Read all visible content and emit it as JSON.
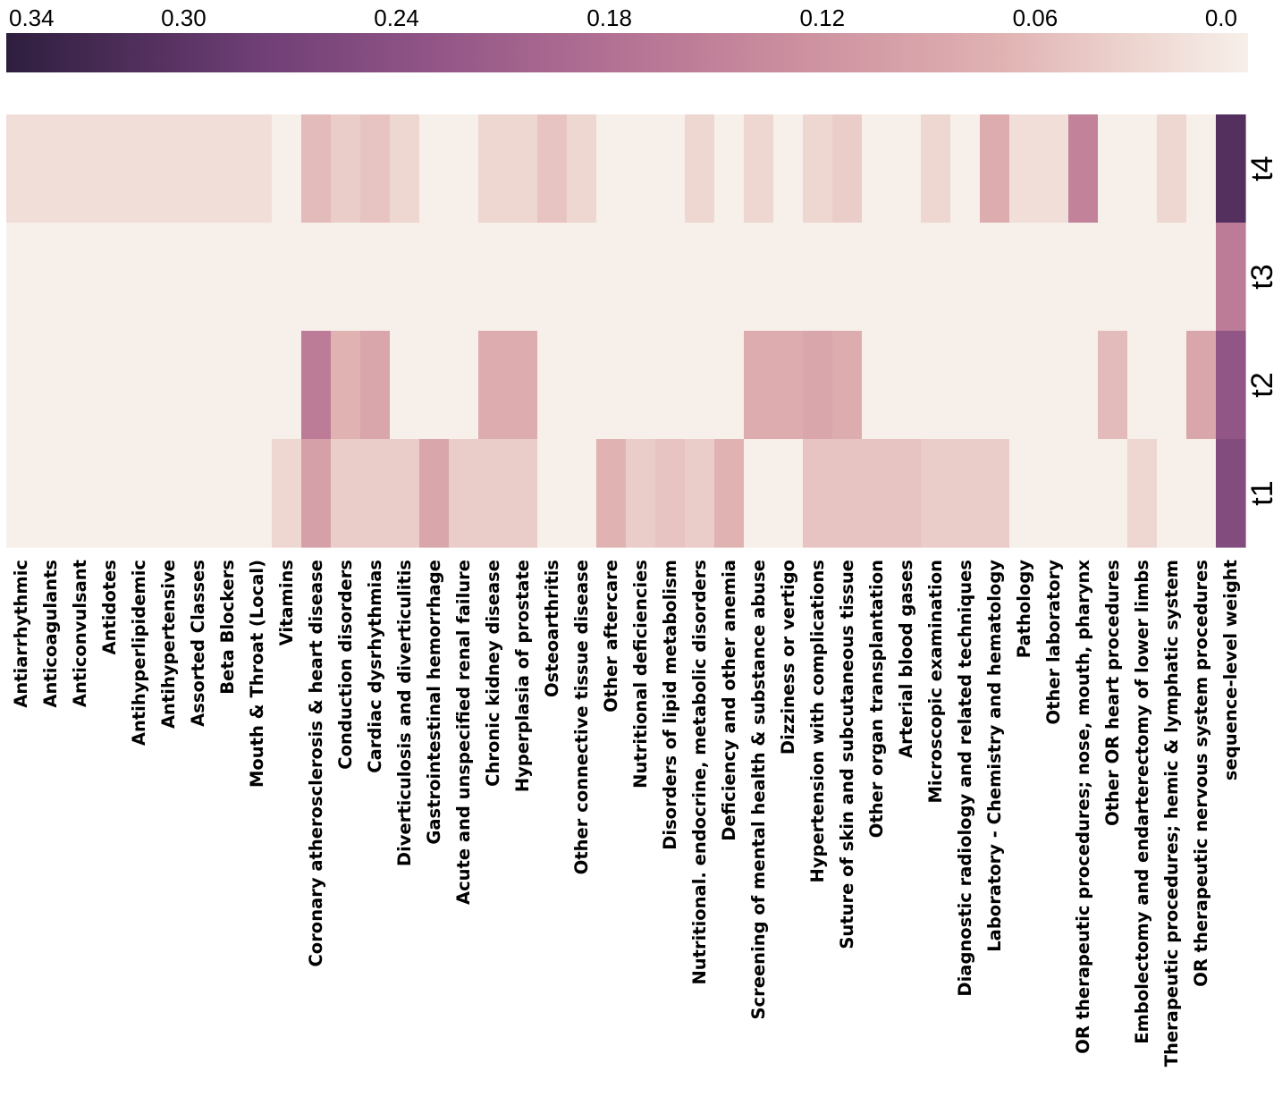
{
  "chart_data": {
    "type": "heatmap",
    "title": "",
    "xlabel": "",
    "ylabel": "",
    "colorbar": {
      "orientation": "horizontal",
      "placement": "top",
      "vmin": 0.0,
      "vmax": 0.35,
      "reversed": true,
      "ticks": [
        0.34,
        0.3,
        0.24,
        0.18,
        0.12,
        0.06,
        0.0
      ],
      "tick_labels": [
        "0.34",
        "0.30",
        "0.24",
        "0.18",
        "0.12",
        "0.06",
        "0.0"
      ],
      "color_low": "#f7efea",
      "color_high": "#2e1e3e"
    },
    "rows": [
      "t4",
      "t3",
      "t2",
      "t1"
    ],
    "columns": [
      "Antiarrhythmic",
      "Anticoagulants",
      "Anticonvulsant",
      "Antidotes",
      "Antihyperlipidemic",
      "Antihypertensive",
      "Assorted Classes",
      "Beta Blockers",
      "Mouth & Throat (Local)",
      "Vitamins",
      "Coronary atherosclerosis & heart disease",
      "Conduction disorders",
      "Cardiac dysrhythmias",
      "Diverticulosis and diverticulitis",
      "Gastrointestinal hemorrhage",
      "Acute and unspecified renal failure",
      "Chronic kidney disease",
      "Hyperplasia of prostate",
      "Osteoarthritis",
      "Other connective tissue disease",
      "Other aftercare",
      "Nutritional deficiencies",
      "Disorders of lipid metabolism",
      "Nutritional. endocrine, metabolic disorders",
      "Deficiency and other anemia",
      "Screening of mental health & substance abuse",
      "Dizziness or vertigo",
      "Hypertension with complications",
      "Suture of skin and subcutaneous tissue",
      "Other organ transplantation",
      "Arterial blood gases",
      "Microscopic examination",
      "Diagnostic radiology and related techniques",
      "Laboratory - Chemistry and hematology",
      "Pathology",
      "Other laboratory",
      "OR therapeutic procedures; nose, mouth, pharynx",
      "Other OR heart procedures",
      "Embolectomy and endarterectomy of lower limbs",
      "Therapeutic procedures; hemic & lymphatic system",
      "OR therapeutic nervous system procedures",
      "sequence-level weight"
    ],
    "values": [
      [
        0.02,
        0.02,
        0.02,
        0.02,
        0.02,
        0.02,
        0.02,
        0.02,
        0.02,
        0.0,
        0.06,
        0.04,
        0.05,
        0.03,
        0.0,
        0.0,
        0.03,
        0.03,
        0.05,
        0.03,
        0.0,
        0.0,
        0.0,
        0.03,
        0.0,
        0.03,
        0.0,
        0.03,
        0.04,
        0.0,
        0.0,
        0.03,
        0.0,
        0.08,
        0.02,
        0.02,
        0.15,
        0.0,
        0.0,
        0.03,
        0.0,
        0.31
      ],
      [
        0.0,
        0.0,
        0.0,
        0.0,
        0.0,
        0.0,
        0.0,
        0.0,
        0.0,
        0.0,
        0.0,
        0.0,
        0.0,
        0.0,
        0.0,
        0.0,
        0.0,
        0.0,
        0.0,
        0.0,
        0.0,
        0.0,
        0.0,
        0.0,
        0.0,
        0.0,
        0.0,
        0.0,
        0.0,
        0.0,
        0.0,
        0.0,
        0.0,
        0.0,
        0.0,
        0.0,
        0.0,
        0.0,
        0.0,
        0.0,
        0.0,
        0.16
      ],
      [
        0.0,
        0.0,
        0.0,
        0.0,
        0.0,
        0.0,
        0.0,
        0.0,
        0.0,
        0.0,
        0.16,
        0.07,
        0.09,
        0.0,
        0.0,
        0.0,
        0.08,
        0.08,
        0.0,
        0.0,
        0.0,
        0.0,
        0.0,
        0.0,
        0.0,
        0.08,
        0.08,
        0.09,
        0.08,
        0.0,
        0.0,
        0.0,
        0.0,
        0.0,
        0.0,
        0.0,
        0.0,
        0.06,
        0.0,
        0.0,
        0.09,
        0.23
      ],
      [
        0.0,
        0.0,
        0.0,
        0.0,
        0.0,
        0.0,
        0.0,
        0.0,
        0.0,
        0.03,
        0.1,
        0.04,
        0.04,
        0.04,
        0.09,
        0.04,
        0.04,
        0.04,
        0.0,
        0.0,
        0.07,
        0.04,
        0.05,
        0.04,
        0.07,
        0.0,
        0.0,
        0.05,
        0.05,
        0.05,
        0.05,
        0.04,
        0.04,
        0.04,
        0.0,
        0.0,
        0.0,
        0.0,
        0.03,
        0.0,
        0.0,
        0.25
      ]
    ]
  }
}
